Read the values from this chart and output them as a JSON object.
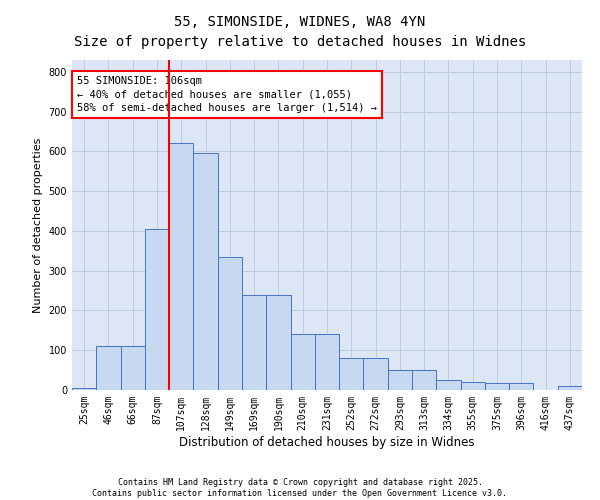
{
  "title_line1": "55, SIMONSIDE, WIDNES, WA8 4YN",
  "title_line2": "Size of property relative to detached houses in Widnes",
  "xlabel": "Distribution of detached houses by size in Widnes",
  "ylabel": "Number of detached properties",
  "categories": [
    "25sqm",
    "46sqm",
    "66sqm",
    "87sqm",
    "107sqm",
    "128sqm",
    "149sqm",
    "169sqm",
    "190sqm",
    "210sqm",
    "231sqm",
    "252sqm",
    "272sqm",
    "293sqm",
    "313sqm",
    "334sqm",
    "355sqm",
    "375sqm",
    "396sqm",
    "416sqm",
    "437sqm"
  ],
  "bar_heights": [
    5,
    110,
    110,
    405,
    620,
    595,
    335,
    240,
    240,
    140,
    140,
    80,
    80,
    50,
    50,
    25,
    20,
    18,
    18,
    0,
    10
  ],
  "bar_color": "#c6d9f0",
  "bar_edge_color": "#4472c4",
  "vline_color": "red",
  "vline_x": 4.0,
  "annotation_text": "55 SIMONSIDE: 106sqm\n← 40% of detached houses are smaller (1,055)\n58% of semi-detached houses are larger (1,514) →",
  "ylim": [
    0,
    830
  ],
  "yticks": [
    0,
    100,
    200,
    300,
    400,
    500,
    600,
    700,
    800
  ],
  "footer": "Contains HM Land Registry data © Crown copyright and database right 2025.\nContains public sector information licensed under the Open Government Licence v3.0.",
  "fig_bg": "white",
  "axes_bg": "#dce6f5",
  "grid_color": "#b8cce4",
  "title_fontsize": 10,
  "ylabel_fontsize": 8,
  "xlabel_fontsize": 8.5,
  "tick_fontsize": 7,
  "footer_fontsize": 6,
  "annot_fontsize": 7.5
}
